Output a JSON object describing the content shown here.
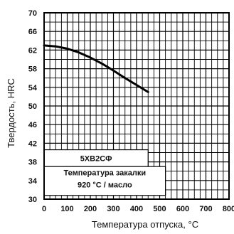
{
  "chart_data": {
    "type": "line",
    "xlabel": "Температура отпуска, °С",
    "ylabel": "Твердость, HRC",
    "xlim": [
      0,
      800
    ],
    "ylim": [
      30,
      70
    ],
    "x_ticks": [
      "0",
      "100",
      "200",
      "300",
      "400",
      "500",
      "600",
      "700",
      "800"
    ],
    "y_ticks": [
      "30",
      "34",
      "38",
      "42",
      "46",
      "50",
      "54",
      "58",
      "62",
      "66",
      "70"
    ],
    "grid": true,
    "series": [
      {
        "x": [
          0,
          50,
          100,
          150,
          200,
          250,
          300,
          350,
          400,
          450
        ],
        "y": [
          63,
          62.8,
          62.3,
          61.5,
          60.4,
          59.1,
          57.6,
          56.0,
          54.5,
          53.0
        ]
      }
    ],
    "annotations": {
      "steel_grade": "5ХВ2СФ",
      "quench_line1": "Температура закалки",
      "quench_line2": "920 °С / масло"
    }
  }
}
